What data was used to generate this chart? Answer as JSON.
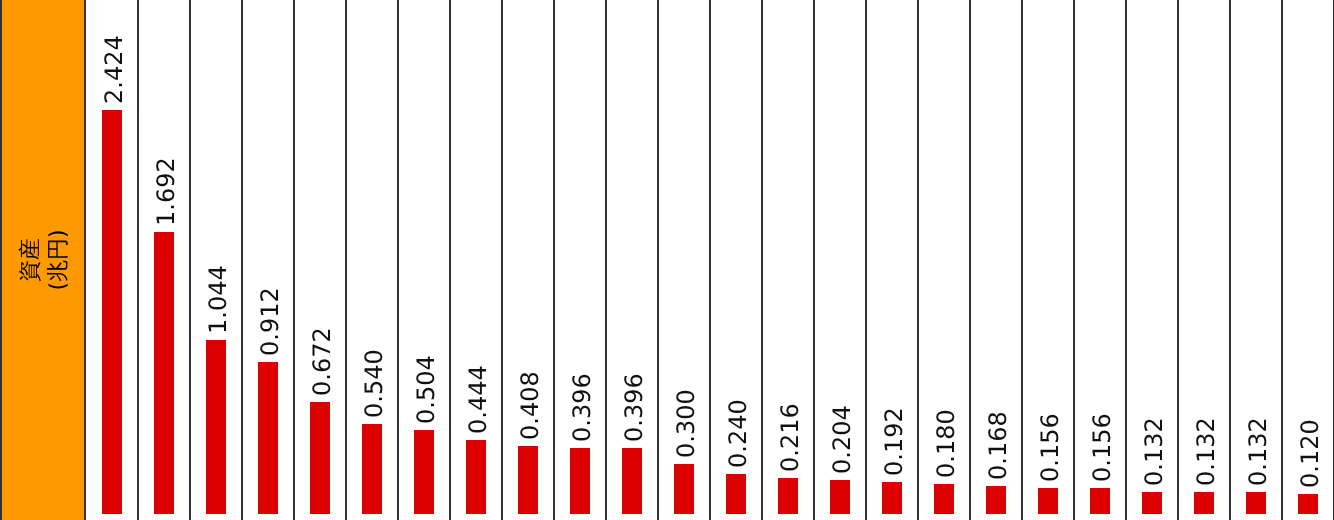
{
  "chart_data": {
    "type": "bar",
    "ylabel": "資産 (兆円)",
    "categories": [
      null,
      null,
      null,
      null,
      null,
      null,
      null,
      null,
      null,
      null,
      null,
      null,
      null,
      null,
      null,
      null,
      null,
      null,
      null,
      null,
      null,
      null,
      null,
      null
    ],
    "values": [
      2.424,
      1.692,
      1.044,
      0.912,
      0.672,
      0.54,
      0.504,
      0.444,
      0.408,
      0.396,
      0.396,
      0.3,
      0.24,
      0.216,
      0.204,
      0.192,
      0.18,
      0.168,
      0.156,
      0.156,
      0.132,
      0.132,
      0.132,
      0.12
    ],
    "value_labels": [
      "2.424",
      "1.692",
      "1.044",
      "0.912",
      "0.672",
      "0.540",
      "0.504",
      "0.444",
      "0.408",
      "0.396",
      "0.396",
      "0.300",
      "0.240",
      "0.216",
      "0.204",
      "0.192",
      "0.180",
      "0.168",
      "0.156",
      "0.156",
      "0.132",
      "0.132",
      "0.132",
      "0.120"
    ],
    "color": "#dd0000"
  }
}
